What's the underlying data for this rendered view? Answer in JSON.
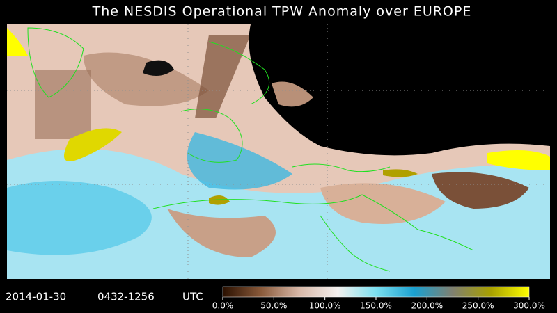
{
  "title": "The NESDIS  Operational  TPW Anomaly over EUROPE",
  "date": "2014-01-30",
  "time_range": "0432-1256",
  "zone": "UTC",
  "colorbar": {
    "range": [
      0,
      300
    ],
    "colors": [
      "#2a1000",
      "#8a5a3a",
      "#d8b8a8",
      "#f4f0ee",
      "#7ce0f0",
      "#1aa0d0",
      "#808070",
      "#a8a000",
      "#ffff00"
    ],
    "ticks": [
      {
        "value": 0,
        "label": "0.0%"
      },
      {
        "value": 50,
        "label": "50.0%"
      },
      {
        "value": 100,
        "label": "100.0%"
      },
      {
        "value": 150,
        "label": "150.0%"
      },
      {
        "value": 200,
        "label": "200.0%"
      },
      {
        "value": 250,
        "label": "250.0%"
      },
      {
        "value": 300,
        "label": "300.0%"
      }
    ]
  }
}
